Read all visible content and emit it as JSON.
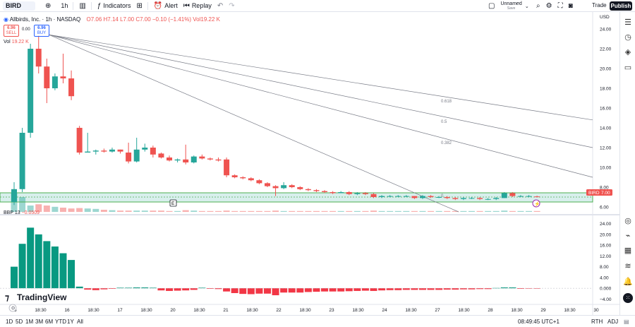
{
  "toolbar": {
    "symbol": "BIRD",
    "interval": "1h",
    "indicators": "Indicators",
    "alert": "Alert",
    "replay": "Replay",
    "layout_name": "Unnamed",
    "layout_status": "Save",
    "trade": "Trade",
    "publish": "Publish"
  },
  "legend": {
    "name": "Allbirds, Inc. · 1h · NASDAQ",
    "ohlc": "O7.06 H7.14 L7.00 C7.00 −0.10 (−1.41%) Vol19.22 K",
    "sell_price": "6.96",
    "sell_label": "SELL",
    "spread": "0.00",
    "buy_price": "6.96",
    "buy_label": "BUY",
    "vol_label": "Vol",
    "vol_value": "19.22 K"
  },
  "main_axis": {
    "unit": "USD",
    "ticks": [
      "24.00",
      "22.00",
      "20.00",
      "18.00",
      "16.00",
      "14.00",
      "12.00",
      "10.00",
      "8.00",
      "6.00"
    ],
    "price_tag_symbol": "BIRD",
    "price_tag_value": "7.00"
  },
  "fib": [
    "0.618",
    "0.5",
    "0.382",
    "0"
  ],
  "event_marker": "E",
  "sub": {
    "label": "BBP 13",
    "value": "−0.0509",
    "ticks": [
      "24.00",
      "20.00",
      "16.00",
      "12.00",
      "8.00",
      "4.00",
      "0.000",
      "−4.00"
    ]
  },
  "x_ticks": [
    "15",
    "18:30",
    "16",
    "18:30",
    "17",
    "18:30",
    "20",
    "18:30",
    "21",
    "18:30",
    "22",
    "18:30",
    "23",
    "18:30",
    "24",
    "18:30",
    "27",
    "18:30",
    "28",
    "18:30",
    "29",
    "18:30",
    "30"
  ],
  "logo": "TradingView",
  "bottom": {
    "ranges": [
      "1D",
      "5D",
      "1M",
      "3M",
      "6M",
      "YTD",
      "1Y",
      "All"
    ],
    "clock": "08:49:45 UTC+1",
    "session": "RTH",
    "adj": "ADJ"
  },
  "colors": {
    "up": "#26a69a",
    "down": "#ef5350"
  },
  "chart_data": {
    "type": "candlestick",
    "ylim": [
      5.5,
      25
    ],
    "candles": [
      [
        6.5,
        8.5,
        6.2,
        7.8
      ],
      [
        7.8,
        14.0,
        7.5,
        13.5
      ],
      [
        13.5,
        22.5,
        13.0,
        22.0
      ],
      [
        22.0,
        23.3,
        19.5,
        20.2
      ],
      [
        20.2,
        21.0,
        16.5,
        18.0
      ],
      [
        18.0,
        19.5,
        17.8,
        19.2
      ],
      [
        19.2,
        21.5,
        18.5,
        19.0
      ],
      [
        19.0,
        19.8,
        16.8,
        17.2
      ],
      [
        14.0,
        14.2,
        11.3,
        11.5
      ],
      [
        11.5,
        13.5,
        11.5,
        11.6
      ],
      [
        11.6,
        11.8,
        11.3,
        11.7
      ],
      [
        11.7,
        11.9,
        11.5,
        11.6
      ],
      [
        11.6,
        12.0,
        11.5,
        11.8
      ],
      [
        11.8,
        11.8,
        11.4,
        11.6
      ],
      [
        11.5,
        12.5,
        10.4,
        10.6
      ],
      [
        10.6,
        13.0,
        10.5,
        11.8
      ],
      [
        11.8,
        12.4,
        11.6,
        12.0
      ],
      [
        12.0,
        12.2,
        11.0,
        11.3
      ],
      [
        11.4,
        11.5,
        10.9,
        11.0
      ],
      [
        11.0,
        11.2,
        10.6,
        10.7
      ],
      [
        10.7,
        10.9,
        10.5,
        10.8
      ],
      [
        10.8,
        12.3,
        10.3,
        10.5
      ],
      [
        10.5,
        11.2,
        10.4,
        11.1
      ],
      [
        11.1,
        11.3,
        10.8,
        10.9
      ],
      [
        10.9,
        11.0,
        10.7,
        10.8
      ],
      [
        10.8,
        11.0,
        10.6,
        10.7
      ],
      [
        10.8,
        11.0,
        9.0,
        9.2
      ],
      [
        9.2,
        9.3,
        8.9,
        9.0
      ],
      [
        9.0,
        9.1,
        8.8,
        8.9
      ],
      [
        8.9,
        9.0,
        8.6,
        8.7
      ],
      [
        8.7,
        8.8,
        8.3,
        8.4
      ],
      [
        8.4,
        8.5,
        8.0,
        8.1
      ],
      [
        8.1,
        8.2,
        7.1,
        7.9
      ],
      [
        7.9,
        8.5,
        7.8,
        8.2
      ],
      [
        8.2,
        8.3,
        7.9,
        8.0
      ],
      [
        8.0,
        8.1,
        7.7,
        7.8
      ],
      [
        7.8,
        7.9,
        7.6,
        7.7
      ],
      [
        7.7,
        7.8,
        7.5,
        7.6
      ],
      [
        7.6,
        7.7,
        7.4,
        7.5
      ],
      [
        7.5,
        7.6,
        7.3,
        7.4
      ],
      [
        7.4,
        7.6,
        7.4,
        7.5
      ],
      [
        7.5,
        7.6,
        7.2,
        7.3
      ],
      [
        7.3,
        7.5,
        7.2,
        7.4
      ],
      [
        7.4,
        7.5,
        7.2,
        7.3
      ],
      [
        7.3,
        7.4,
        6.9,
        7.0
      ],
      [
        7.0,
        7.2,
        6.9,
        7.1
      ],
      [
        7.1,
        7.2,
        7.0,
        7.1
      ],
      [
        7.1,
        7.2,
        7.0,
        7.1
      ],
      [
        7.1,
        7.2,
        7.0,
        7.1
      ],
      [
        7.1,
        7.1,
        6.8,
        6.9
      ],
      [
        6.9,
        7.2,
        6.8,
        7.1
      ],
      [
        7.1,
        7.2,
        6.9,
        7.0
      ],
      [
        7.0,
        7.1,
        6.9,
        7.0
      ],
      [
        7.0,
        7.1,
        6.8,
        6.9
      ],
      [
        6.9,
        7.0,
        6.7,
        6.8
      ],
      [
        6.8,
        7.0,
        6.7,
        6.9
      ],
      [
        6.9,
        7.0,
        6.8,
        6.9
      ],
      [
        6.9,
        7.0,
        6.7,
        6.8
      ],
      [
        6.8,
        6.9,
        6.7,
        6.8
      ],
      [
        6.8,
        7.0,
        6.7,
        6.9
      ],
      [
        6.9,
        7.5,
        6.9,
        7.4
      ],
      [
        7.4,
        7.5,
        7.0,
        7.1
      ],
      [
        7.1,
        7.2,
        7.0,
        7.1
      ],
      [
        7.1,
        7.2,
        7.0,
        7.1
      ],
      [
        7.06,
        7.14,
        7.0,
        7.0
      ]
    ],
    "volume": [
      0.45,
      0.35,
      0.15,
      0.18,
      0.15,
      0.12,
      0.1,
      0.08,
      0.09,
      0.08,
      0.07,
      0.05,
      0.04,
      0.03,
      0.03,
      0.03,
      0.03,
      0.03,
      0.03,
      0.02,
      0.02,
      0.04,
      0.03,
      0.02,
      0.02,
      0.02,
      0.03,
      0.02,
      0.02,
      0.02,
      0.02,
      0.02,
      0.03,
      0.02,
      0.02,
      0.02,
      0.02,
      0.02,
      0.02,
      0.02,
      0.02,
      0.02,
      0.02,
      0.02,
      0.03,
      0.02,
      0.02,
      0.02,
      0.02,
      0.02,
      0.02,
      0.02,
      0.02,
      0.02,
      0.02,
      0.02,
      0.02,
      0.02,
      0.02,
      0.02,
      0.03,
      0.02,
      0.02,
      0.02,
      0.02
    ],
    "bbp": [
      8.0,
      16.5,
      22.5,
      20.0,
      17.5,
      15.5,
      13.0,
      10.5,
      0.6,
      -0.5,
      -0.7,
      -0.4,
      -0.2,
      0.2,
      0.2,
      0.3,
      0.3,
      0.2,
      -0.8,
      -1.0,
      -0.9,
      -0.8,
      -0.6,
      0.2,
      -0.2,
      -0.3,
      -1.2,
      -1.8,
      -2.1,
      -2.2,
      -2.0,
      -2.0,
      -2.6,
      -1.6,
      -1.6,
      -1.6,
      -1.4,
      -1.3,
      -1.2,
      -1.2,
      -1.2,
      -1.1,
      -1.0,
      -0.9,
      -1.0,
      -0.8,
      -0.7,
      -0.7,
      -0.6,
      -0.6,
      -0.6,
      -0.6,
      -0.6,
      -0.5,
      -0.5,
      -0.4,
      -0.4,
      -0.3,
      -0.3,
      0.1,
      0.3,
      0.3,
      -0.2,
      -0.1,
      -0.05
    ],
    "bbp_ylim": [
      -6,
      26
    ]
  }
}
